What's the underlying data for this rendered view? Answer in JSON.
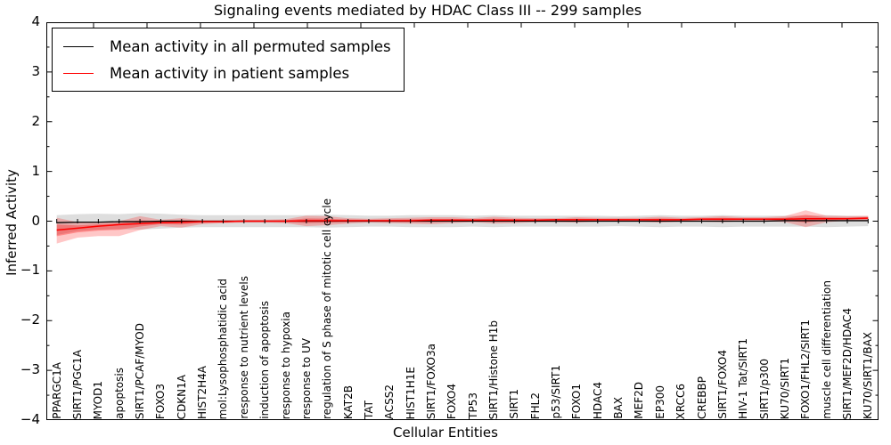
{
  "title": "Signaling events mediated by HDAC Class III -- 299 samples",
  "legend": {
    "items": [
      {
        "label": "Mean activity in all permuted samples",
        "color": "#000000"
      },
      {
        "label": "Mean activity in patient samples",
        "color": "#ff0000"
      }
    ]
  },
  "chart_data": {
    "type": "line",
    "title": "Signaling events mediated by HDAC Class III -- 299 samples",
    "xlabel": "Cellular Entities",
    "ylabel": "Inferred Activity",
    "ylim": [
      -4,
      4
    ],
    "ytick_labels": [
      "4",
      "3",
      "2",
      "1",
      "0",
      "−1",
      "−2",
      "−3",
      "−4"
    ],
    "grid": false,
    "legend_position": "upper left",
    "categories": [
      "PPARGC1A",
      "SIRT1/PGC1A",
      "MYOD1",
      "apoptosis",
      "SIRT1/PCAF/MYOD",
      "FOXO3",
      "CDKN1A",
      "HIST2H4A",
      "mol:Lysophosphatidic acid",
      "response to nutrient levels",
      "induction of apoptosis",
      "response to hypoxia",
      "response to UV",
      "regulation of S phase of mitotic cell cycle",
      "KAT2B",
      "TAT",
      "ACSS2",
      "HIST1H1E",
      "SIRT1/FOXO3a",
      "FOXO4",
      "TP53",
      "SIRT1/Histone H1b",
      "SIRT1",
      "FHL2",
      "p53/SIRT1",
      "FOXO1",
      "HDAC4",
      "BAX",
      "MEF2D",
      "EP300",
      "XRCC6",
      "CREBBP",
      "SIRT1/FOXO4",
      "HIV-1 Tat/SIRT1",
      "SIRT1/p300",
      "KU70/SIRT1",
      "FOXO1/FHL2/SIRT1",
      "muscle cell differentiation",
      "SIRT1/MEF2D/HDAC4",
      "KU70/SIRT1/BAX"
    ],
    "series": [
      {
        "name": "Mean activity in all permuted samples",
        "color": "#000000",
        "band_color": "#000000",
        "values": [
          -0.03,
          -0.02,
          -0.02,
          -0.01,
          -0.01,
          0,
          0,
          0,
          0,
          0,
          0,
          0,
          0,
          0,
          0,
          0,
          0,
          0,
          0,
          0,
          0,
          0,
          0,
          0,
          0,
          0,
          0,
          0,
          0,
          0,
          0,
          0,
          0,
          0,
          0,
          0.01,
          0.01,
          0.01,
          0.01,
          0.01
        ],
        "band_lo": [
          -0.28,
          -0.2,
          -0.17,
          -0.16,
          -0.17,
          -0.15,
          -0.13,
          -0.12,
          -0.12,
          -0.12,
          -0.12,
          -0.12,
          -0.12,
          -0.13,
          -0.12,
          -0.11,
          -0.11,
          -0.12,
          -0.12,
          -0.12,
          -0.11,
          -0.12,
          -0.11,
          -0.11,
          -0.11,
          -0.11,
          -0.11,
          -0.1,
          -0.11,
          -0.12,
          -0.11,
          -0.11,
          -0.12,
          -0.11,
          -0.11,
          -0.11,
          -0.11,
          -0.12,
          -0.11,
          -0.1
        ],
        "band_hi": [
          0.12,
          0.14,
          0.15,
          0.14,
          0.16,
          0.15,
          0.13,
          0.12,
          0.12,
          0.12,
          0.12,
          0.12,
          0.12,
          0.13,
          0.12,
          0.11,
          0.11,
          0.12,
          0.12,
          0.12,
          0.11,
          0.12,
          0.11,
          0.11,
          0.11,
          0.11,
          0.11,
          0.1,
          0.11,
          0.12,
          0.11,
          0.11,
          0.12,
          0.11,
          0.11,
          0.11,
          0.11,
          0.12,
          0.11,
          0.1
        ]
      },
      {
        "name": "Mean activity in patient samples",
        "color": "#ff0000",
        "band_color": "#ff0000",
        "values": [
          -0.18,
          -0.14,
          -0.1,
          -0.07,
          -0.05,
          -0.03,
          -0.02,
          -0.01,
          -0.01,
          0,
          0,
          0,
          0.01,
          0.01,
          0.01,
          0.01,
          0.01,
          0.01,
          0.02,
          0.02,
          0.02,
          0.02,
          0.02,
          0.02,
          0.03,
          0.03,
          0.03,
          0.03,
          0.03,
          0.03,
          0.03,
          0.04,
          0.04,
          0.04,
          0.04,
          0.04,
          0.05,
          0.05,
          0.05,
          0.06
        ],
        "band_lo": [
          -0.45,
          -0.33,
          -0.3,
          -0.3,
          -0.18,
          -0.1,
          -0.13,
          -0.06,
          -0.04,
          -0.03,
          -0.03,
          -0.04,
          -0.1,
          -0.08,
          -0.05,
          -0.03,
          -0.04,
          -0.05,
          -0.06,
          -0.04,
          -0.02,
          -0.05,
          -0.04,
          -0.02,
          -0.02,
          -0.03,
          -0.01,
          -0.01,
          -0.01,
          -0.03,
          -0.01,
          -0.01,
          -0.02,
          0,
          0,
          -0.02,
          -0.12,
          -0.02,
          0.01,
          0.01
        ],
        "band_hi": [
          0.07,
          -0.02,
          -0.02,
          0.0,
          0.1,
          0.03,
          0.06,
          0.02,
          0.02,
          0.03,
          0.03,
          0.04,
          0.11,
          0.1,
          0.06,
          0.05,
          0.06,
          0.07,
          0.08,
          0.08,
          0.06,
          0.09,
          0.07,
          0.06,
          0.06,
          0.08,
          0.07,
          0.07,
          0.07,
          0.09,
          0.07,
          0.08,
          0.1,
          0.08,
          0.08,
          0.1,
          0.22,
          0.11,
          0.1,
          0.11
        ]
      }
    ]
  }
}
